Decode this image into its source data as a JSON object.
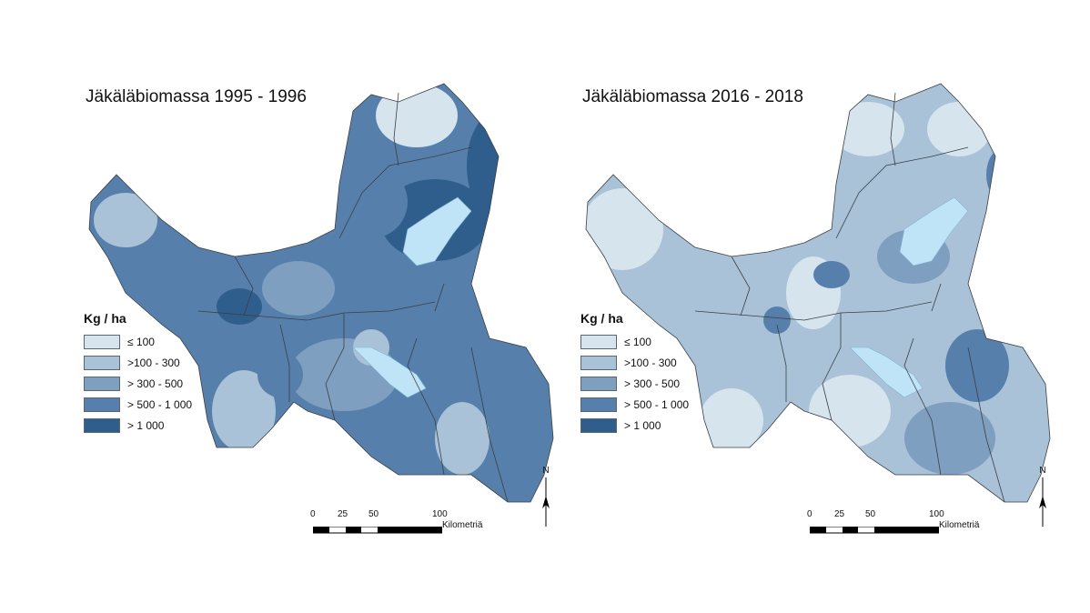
{
  "maps": [
    {
      "title": "Jäkäläbiomassa 1995 - 1996",
      "dominant_class": 3
    },
    {
      "title": "Jäkäläbiomassa 2016 - 2018",
      "dominant_class": 1
    }
  ],
  "legend": {
    "title": "Kg / ha",
    "classes": [
      {
        "label": "≤ 100",
        "color": "#d6e4ed"
      },
      {
        "label": ">100 - 300",
        "color": "#a9c2d7"
      },
      {
        "label": "> 300 - 500",
        "color": "#7f9fc0"
      },
      {
        "label": "> 500 - 1 000",
        "color": "#5680ab"
      },
      {
        "label": "> 1 000",
        "color": "#2f5e8c"
      }
    ]
  },
  "scale": {
    "ticks": [
      "0",
      "25",
      "50",
      "100"
    ],
    "unit": "Kilometriä"
  },
  "north_label": "N",
  "water_color": "#bfe3f7",
  "border_color": "#3a3f44"
}
